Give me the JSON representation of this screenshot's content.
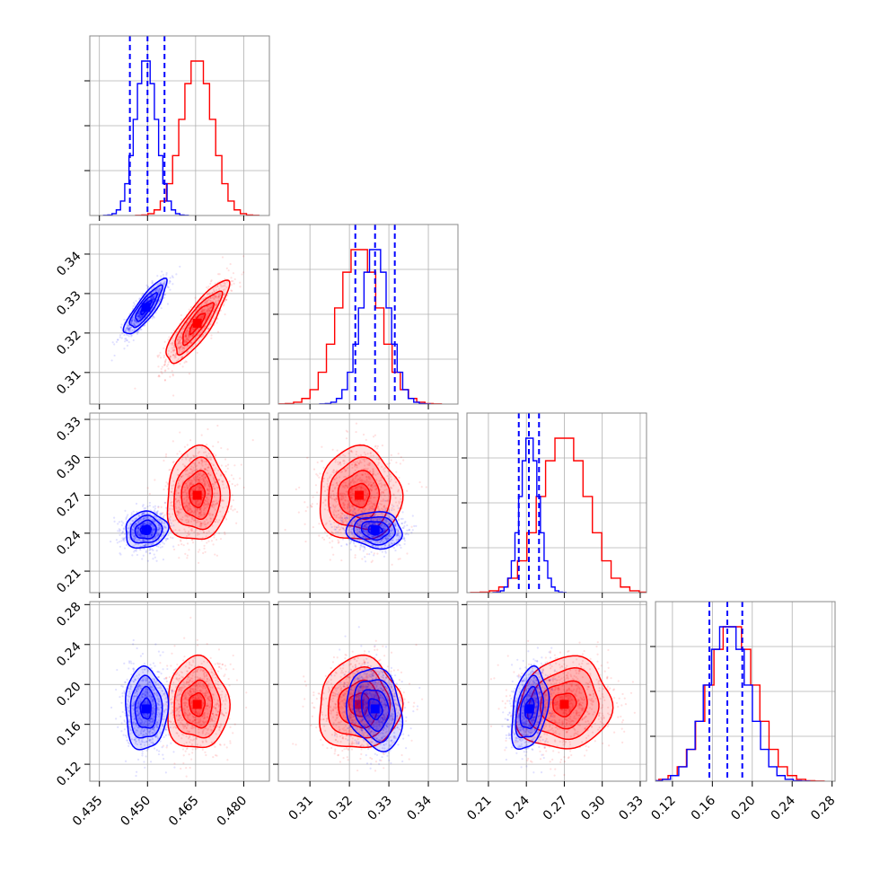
{
  "colors": {
    "blue": "#0000ff",
    "red": "#ff0000",
    "grid": "#b0b0b0",
    "axis": "#000000"
  },
  "chart_data": {
    "type": "corner",
    "title": "",
    "grid": true,
    "parameters": [
      {
        "range": [
          0.432,
          0.488
        ],
        "ticks": [
          "0.435",
          "0.450",
          "0.465",
          "0.480"
        ],
        "tick_values": [
          0.435,
          0.45,
          0.465,
          0.48
        ]
      },
      {
        "range": [
          0.302,
          0.3475
        ],
        "ticks": [
          "0.31",
          "0.32",
          "0.33",
          "0.34"
        ],
        "tick_values": [
          0.31,
          0.32,
          0.33,
          0.34
        ]
      },
      {
        "range": [
          0.193,
          0.335
        ],
        "ticks": [
          "0.21",
          "0.24",
          "0.27",
          "0.30",
          "0.33"
        ],
        "tick_values": [
          0.21,
          0.24,
          0.27,
          0.3,
          0.33
        ]
      },
      {
        "range": [
          0.103,
          0.283
        ],
        "ticks": [
          "0.12",
          "0.16",
          "0.20",
          "0.24",
          "0.28"
        ],
        "tick_values": [
          0.12,
          0.16,
          0.2,
          0.24,
          0.28
        ]
      }
    ],
    "series": [
      {
        "color": "blue",
        "mean": [
          0.4495,
          0.3265,
          0.2425,
          0.1755
        ],
        "sd": [
          0.0033,
          0.0035,
          0.0072,
          0.0205
        ],
        "corr": {
          "0-1": 0.85,
          "0-2": 0.1,
          "0-3": 0.0,
          "1-2": -0.1,
          "1-3": -0.2,
          "2-3": 0.3
        },
        "quantiles": [
          [
            0.4445,
            0.45,
            0.4553
          ],
          [
            0.3215,
            0.3265,
            0.3315
          ],
          [
            0.234,
            0.242,
            0.25
          ],
          [
            0.157,
            0.175,
            0.19
          ]
        ]
      },
      {
        "color": "red",
        "mean": [
          0.4655,
          0.3225,
          0.27,
          0.18
        ],
        "sd": [
          0.0048,
          0.0052,
          0.0185,
          0.023
        ],
        "corr": {
          "0-1": 0.85,
          "0-2": 0.05,
          "0-3": 0.0,
          "1-2": 0.0,
          "1-3": 0.05,
          "2-3": 0.1
        },
        "quantiles": []
      }
    ]
  }
}
